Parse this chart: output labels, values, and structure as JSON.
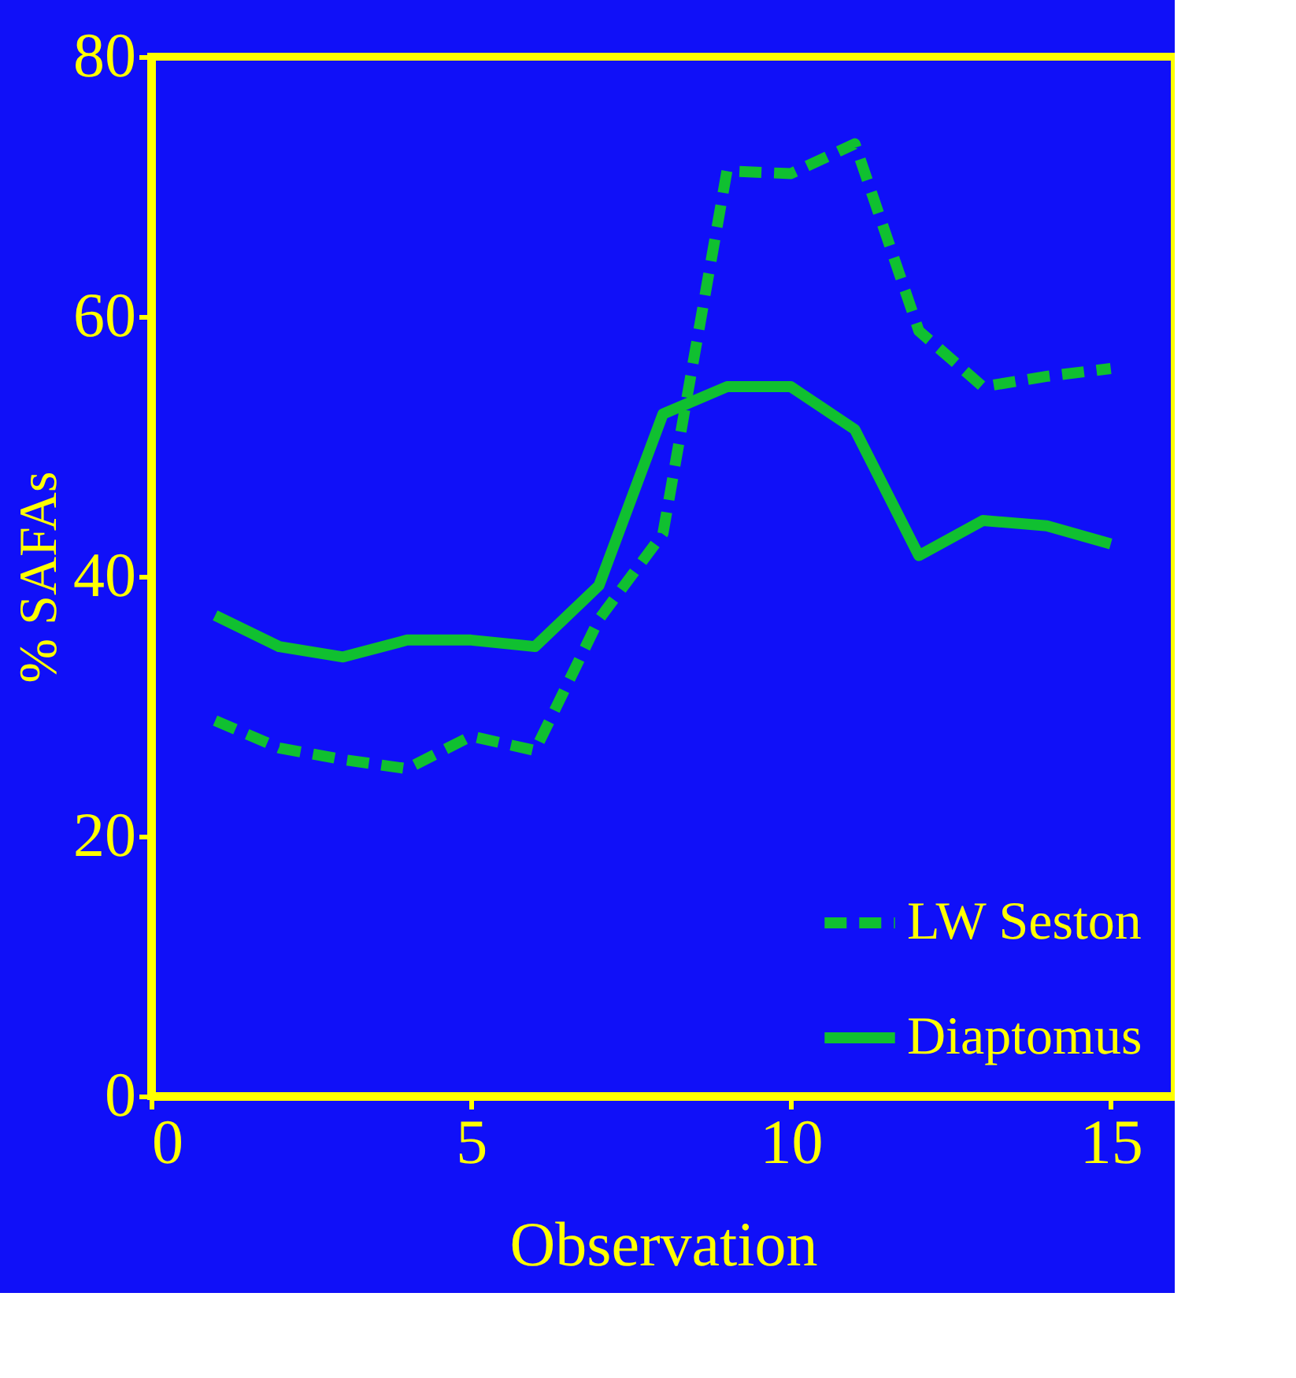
{
  "chart_data": {
    "type": "line",
    "xlabel": "Observation",
    "ylabel": "% SAFAs",
    "x": [
      1,
      2,
      3,
      4,
      5,
      6,
      7,
      8,
      9,
      10,
      11,
      12,
      13,
      14,
      15
    ],
    "series": [
      {
        "name": "LW Seston",
        "color": "#10c030",
        "line_style": "dashed",
        "values": [
          28.9,
          26.8,
          25.9,
          25.2,
          27.7,
          26.6,
          36.7,
          43.3,
          71.2,
          71,
          73.3,
          58.9,
          54.6,
          55.4,
          56
        ]
      },
      {
        "name": "Diaptomus",
        "color": "#10c030",
        "line_style": "solid",
        "values": [
          37,
          34.6,
          33.8,
          35.1,
          35.1,
          34.6,
          39.3,
          52.5,
          54.6,
          54.6,
          51.3,
          41.6,
          44.3,
          43.9,
          42.5
        ]
      }
    ],
    "xlim": [
      0,
      16
    ],
    "ylim": [
      0,
      80
    ],
    "xticks": [
      0,
      5,
      10,
      15
    ],
    "yticks": [
      0,
      20,
      40,
      60,
      80
    ],
    "grid": false,
    "legend": "bottom right",
    "marker": "none"
  }
}
